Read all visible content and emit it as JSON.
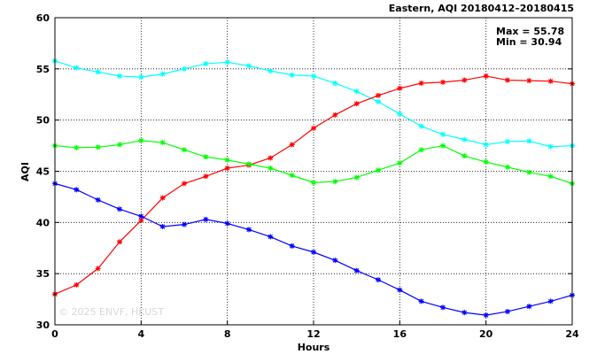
{
  "chart_data": {
    "type": "line",
    "title": "Eastern, AQI 20180412–20180415",
    "xlabel": "Hours",
    "ylabel": "AQI",
    "xlim": [
      0,
      24
    ],
    "ylim": [
      30,
      60
    ],
    "x_ticks": [
      0,
      4,
      8,
      12,
      16,
      20,
      24
    ],
    "y_ticks": [
      30,
      35,
      40,
      45,
      50,
      55,
      60
    ],
    "grid": true,
    "stats": [
      "Max = 55.78",
      "Min = 30.94"
    ],
    "watermark": "© 2025  ENVF, HKUST",
    "x": [
      0,
      1,
      2,
      3,
      4,
      5,
      6,
      7,
      8,
      9,
      10,
      11,
      12,
      13,
      14,
      15,
      16,
      17,
      18,
      19,
      20,
      21,
      22,
      23,
      24
    ],
    "series": [
      {
        "color": "#00ffff",
        "values": [
          55.78,
          55.1,
          54.7,
          54.3,
          54.2,
          54.5,
          55.0,
          55.5,
          55.65,
          55.3,
          54.8,
          54.4,
          54.3,
          53.6,
          52.8,
          51.8,
          50.6,
          49.4,
          48.6,
          48.1,
          47.6,
          47.9,
          47.95,
          47.4,
          47.5
        ]
      },
      {
        "color": "#ff0000",
        "values": [
          33.0,
          33.9,
          35.5,
          38.1,
          40.2,
          42.4,
          43.8,
          44.5,
          45.3,
          45.6,
          46.3,
          47.6,
          49.2,
          50.5,
          51.6,
          52.4,
          53.1,
          53.6,
          53.7,
          53.9,
          54.3,
          53.9,
          53.85,
          53.8,
          53.55
        ]
      },
      {
        "color": "#00ff00",
        "values": [
          47.5,
          47.3,
          47.35,
          47.6,
          48.0,
          47.8,
          47.1,
          46.4,
          46.1,
          45.7,
          45.3,
          44.6,
          43.9,
          44.0,
          44.4,
          45.1,
          45.8,
          47.1,
          47.5,
          46.5,
          45.9,
          45.4,
          44.9,
          44.5,
          43.8
        ]
      },
      {
        "color": "#0000ff",
        "values": [
          43.8,
          43.2,
          42.2,
          41.3,
          40.6,
          39.6,
          39.8,
          40.3,
          39.9,
          39.3,
          38.6,
          37.7,
          37.1,
          36.3,
          35.3,
          34.4,
          33.4,
          32.3,
          31.7,
          31.2,
          30.94,
          31.3,
          31.8,
          32.3,
          32.9
        ]
      }
    ]
  }
}
